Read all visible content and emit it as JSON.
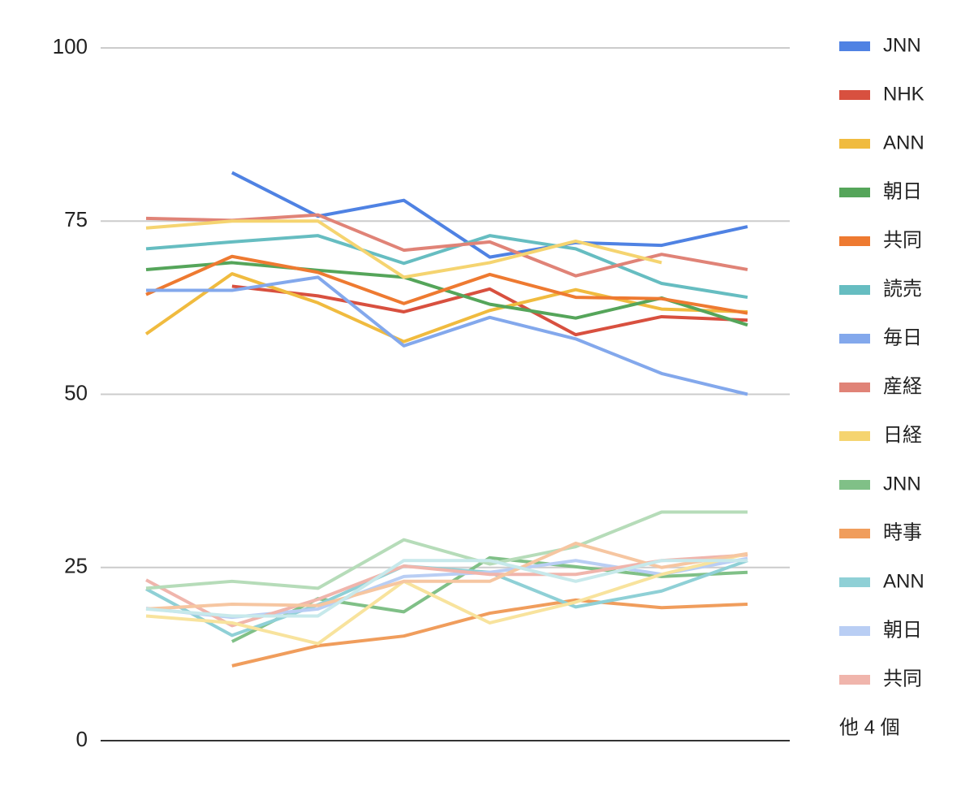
{
  "chart_data": {
    "type": "line",
    "categories": [
      null,
      null,
      null,
      null,
      null,
      null,
      null,
      null
    ],
    "ylim": [
      0,
      100
    ],
    "yticks": [
      0,
      25,
      50,
      75,
      100
    ],
    "grid": true,
    "legend_position": "right",
    "legend_more": "他 4 個",
    "series": [
      {
        "name": "JNN",
        "color": "#4f82e3",
        "values": [
          null,
          82,
          75.7,
          78,
          69.8,
          71.9,
          71.5,
          74.2
        ]
      },
      {
        "name": "NHK",
        "color": "#d8503f",
        "values": [
          null,
          65.6,
          64.2,
          61.9,
          65.2,
          58.6,
          61.2,
          60.7
        ]
      },
      {
        "name": "ANN",
        "color": "#f0bb3f",
        "values": [
          58.7,
          67.4,
          63.2,
          57.6,
          62.1,
          65.1,
          62.3,
          61.9
        ]
      },
      {
        "name": "朝日",
        "color": "#55a55a",
        "values": [
          68,
          69,
          67.9,
          66.9,
          63,
          61,
          63.9,
          60
        ]
      },
      {
        "name": "共同",
        "color": "#ee7a31",
        "values": [
          64.4,
          69.9,
          67.6,
          63.1,
          67.3,
          64,
          63.8,
          61.7
        ]
      },
      {
        "name": "読売",
        "color": "#66bdc1",
        "values": [
          71,
          72,
          72.9,
          68.9,
          72.9,
          71,
          66,
          64
        ]
      },
      {
        "name": "毎日",
        "color": "#83a8ec",
        "values": [
          65,
          65,
          66.9,
          57,
          61.1,
          58,
          53,
          50
        ]
      },
      {
        "name": "産経",
        "color": "#e08377",
        "values": [
          75.4,
          75.1,
          75.9,
          70.8,
          72,
          67.1,
          70.2,
          68
        ]
      },
      {
        "name": "日経",
        "color": "#f5d470",
        "values": [
          74,
          75,
          75,
          66.9,
          69,
          72.1,
          69,
          null
        ]
      },
      {
        "name": "JNN",
        "color": "#80c087",
        "values": [
          null,
          14.3,
          20.5,
          18.6,
          26.4,
          25.1,
          23.7,
          24.3
        ]
      },
      {
        "name": "時事",
        "color": "#f09d5c",
        "values": [
          null,
          10.8,
          13.7,
          15.1,
          18.4,
          20.3,
          19.2,
          19.7
        ]
      },
      {
        "name": "ANN",
        "color": "#8fd0d6",
        "values": [
          21.9,
          15.2,
          19.6,
          25.2,
          24.3,
          19.3,
          21.6,
          26
        ]
      },
      {
        "name": "朝日",
        "color": "#b9cef4",
        "values": [
          19.1,
          17.8,
          19,
          23.7,
          24.3,
          26,
          24,
          26.3
        ]
      },
      {
        "name": "共同",
        "color": "#f0b5ac",
        "values": [
          23.2,
          16.6,
          20.4,
          25.2,
          24,
          24,
          26,
          26.8
        ]
      },
      {
        "color": "#b6dcb9",
        "values": [
          22,
          23,
          22,
          29,
          25.5,
          28,
          33,
          33
        ]
      },
      {
        "color": "#f8e39d",
        "values": [
          18,
          17,
          14,
          23,
          17,
          20,
          24,
          27
        ]
      },
      {
        "color": "#f6c6a1",
        "values": [
          19,
          19.7,
          19.5,
          23,
          23,
          28.5,
          25,
          27
        ]
      },
      {
        "color": "#c7e9eb",
        "values": [
          19,
          18,
          18,
          26,
          26,
          23,
          26,
          26
        ]
      }
    ]
  }
}
